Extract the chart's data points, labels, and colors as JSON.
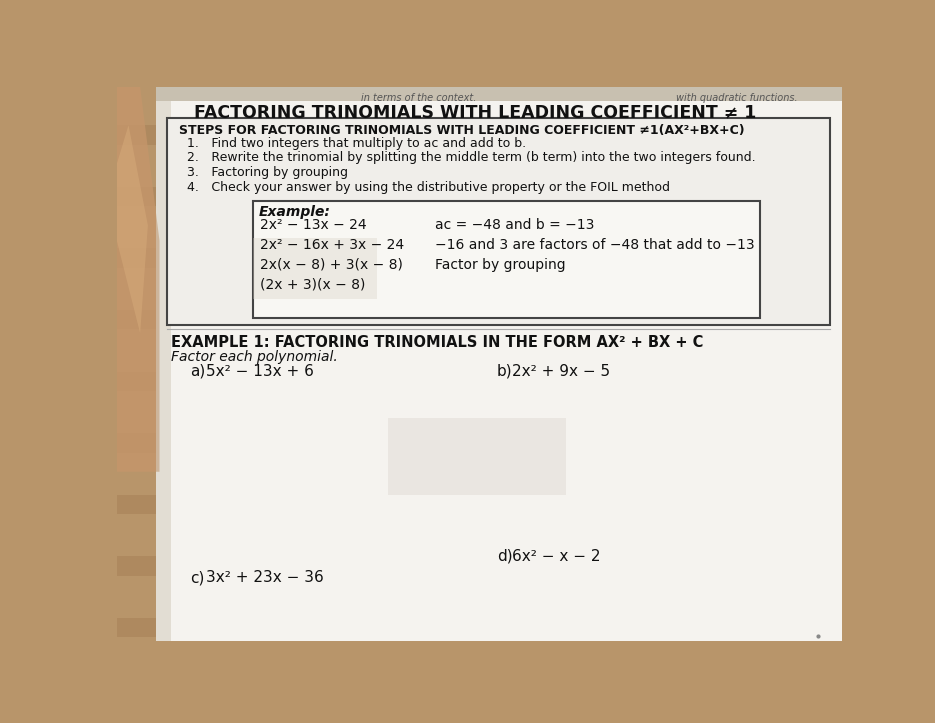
{
  "bg_color": "#b8956a",
  "paper_color": "#f5f3ef",
  "paper_color_inner": "#f0eeea",
  "title_main": "FACTORING TRINOMIALS WITH LEADING COEFFICIENT ≠ 1",
  "top_text_left": "in terms of the context.",
  "top_text_right": "with quadratic functions.",
  "steps_header": "STEPS FOR FACTORING TRINOMIALS WITH LEADING COEFFICIENT ≠1(AX²+BX+C)",
  "steps": [
    "Find two integers that multiply to ac and add to b.",
    "Rewrite the trinomial by splitting the middle term (b term) into the two integers found.",
    "Factoring by grouping",
    "Check your answer by using the distributive property or the FOIL method"
  ],
  "example_label": "Example:",
  "example_rows_left": [
    "2x² − 13x − 24",
    "2x² − 16x + 3x − 24",
    "2x(x − 8) + 3(x − 8)",
    "(2x + 3)(x − 8)"
  ],
  "example_rows_right": [
    "ac = −48 and b = −13",
    "−16 and 3 are factors of −48 that add to −13",
    "Factor by grouping",
    ""
  ],
  "example1_header": "EXAMPLE 1: FACTORING TRINOMIALS IN THE FORM AX² + BX + C",
  "factor_label": "Factor each polynomial.",
  "prob_a_label": "a)",
  "prob_a_expr": "5x² − 13x + 6",
  "prob_b_label": "b)",
  "prob_b_expr": "2x² + 9x − 5",
  "prob_c_label": "c)",
  "prob_c_expr": "3x² + 23x − 36",
  "prob_d_label": "d)",
  "prob_d_expr": "6x² − x − 2",
  "hand_color": "#c8a882",
  "wood_color1": "#b8956a",
  "wood_color2": "#a07850"
}
